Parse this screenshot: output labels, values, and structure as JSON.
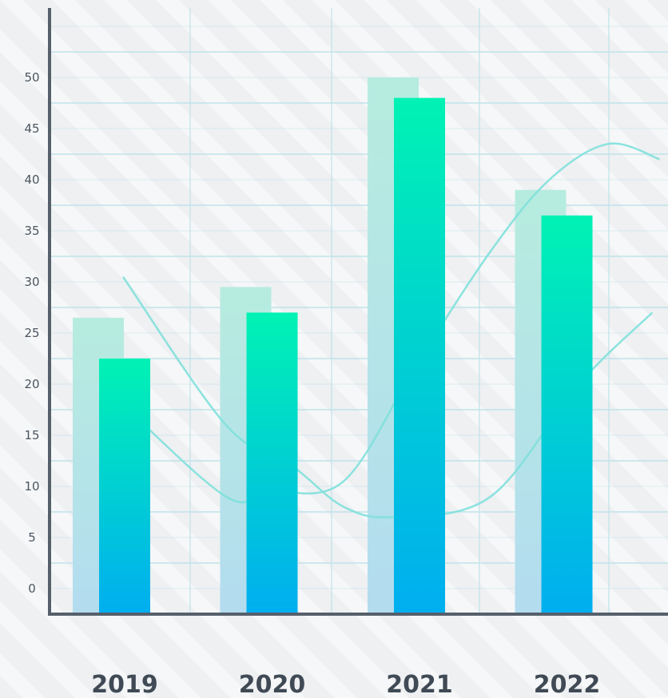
{
  "chart_data": {
    "type": "bar",
    "title": "",
    "xlabel": "",
    "ylabel": "",
    "categories": [
      "2019",
      "2020",
      "2021",
      "2022"
    ],
    "yticks": [
      "0",
      "5",
      "10",
      "15",
      "20",
      "25",
      "30",
      "35",
      "40",
      "45",
      "50"
    ],
    "ylim": [
      -2.5,
      53
    ],
    "grid": true,
    "legend": "none",
    "series": [
      {
        "values": [
          26.5,
          29.5,
          50,
          39
        ]
      },
      {
        "values": [
          22.5,
          27,
          48,
          36.5
        ]
      }
    ],
    "curves": [
      {
        "points": [
          [
            0.5,
            30.5
          ],
          [
            1.2,
            16
          ],
          [
            1.65,
            12
          ],
          [
            2,
            8
          ],
          [
            2.35,
            7
          ],
          [
            3,
            9
          ],
          [
            3.6,
            20
          ],
          [
            4.1,
            27
          ]
        ]
      },
      {
        "points": [
          [
            0.5,
            18
          ],
          [
            1.2,
            9
          ],
          [
            1.5,
            9.5
          ],
          [
            2,
            10.5
          ],
          [
            2.5,
            22
          ],
          [
            3,
            33
          ],
          [
            3.4,
            40
          ],
          [
            3.8,
            43.5
          ],
          [
            4.15,
            42
          ]
        ]
      }
    ],
    "colors": {
      "background": "#eef0f2",
      "stripe": "#ffffff",
      "grid": "#bfe3e9",
      "axis": "#55606b",
      "back_bar_top": "#b6ecdf",
      "back_bar_bottom": "#b3dcef",
      "front_bar_top": "#00f2b4",
      "front_bar_bottom": "#00aef0",
      "curve": "#7fe0dc"
    }
  }
}
